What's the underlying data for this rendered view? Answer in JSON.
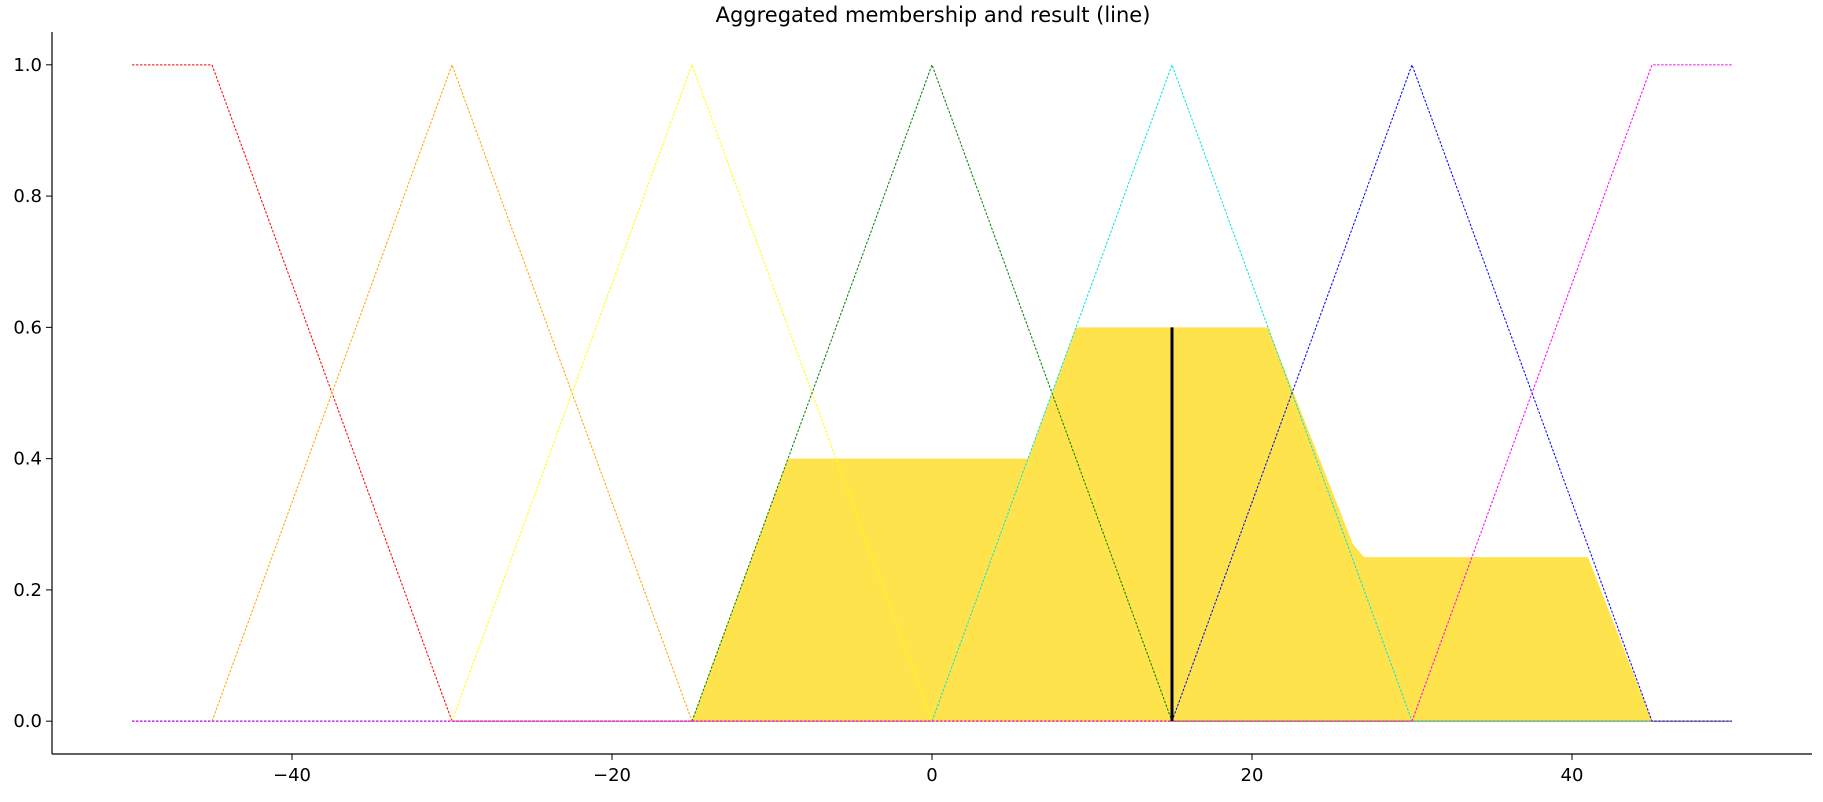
{
  "chart_data": {
    "type": "area",
    "title": "Aggregated membership and result (line)",
    "xlabel": "",
    "ylabel": "",
    "xlim": [
      -55,
      55
    ],
    "ylim": [
      -0.05,
      1.05
    ],
    "x_ticks": [
      -40,
      -20,
      0,
      20,
      40
    ],
    "x_tick_labels": [
      "−40",
      "−20",
      "0",
      "20",
      "40"
    ],
    "y_ticks": [
      0.0,
      0.2,
      0.4,
      0.6,
      0.8,
      1.0
    ],
    "y_tick_labels": [
      "0.0",
      "0.2",
      "0.4",
      "0.6",
      "0.8",
      "1.0"
    ],
    "grid": false,
    "membership_functions": [
      {
        "color": "#ff0000",
        "points": [
          [
            -50,
            1
          ],
          [
            -45,
            1
          ],
          [
            -30,
            0
          ],
          [
            50,
            0
          ]
        ]
      },
      {
        "color": "#ffa500",
        "points": [
          [
            -50,
            0
          ],
          [
            -45,
            0
          ],
          [
            -30,
            1
          ],
          [
            -15,
            0
          ],
          [
            50,
            0
          ]
        ]
      },
      {
        "color": "#ffff00",
        "points": [
          [
            -50,
            0
          ],
          [
            -30,
            0
          ],
          [
            -15,
            1
          ],
          [
            0,
            0
          ],
          [
            50,
            0
          ]
        ]
      },
      {
        "color": "#008000",
        "points": [
          [
            -50,
            0
          ],
          [
            -15,
            0
          ],
          [
            0,
            1
          ],
          [
            15,
            0
          ],
          [
            50,
            0
          ]
        ]
      },
      {
        "color": "#00e5e5",
        "points": [
          [
            -50,
            0
          ],
          [
            0,
            0
          ],
          [
            15,
            1
          ],
          [
            30,
            0
          ],
          [
            50,
            0
          ]
        ]
      },
      {
        "color": "#0000ff",
        "points": [
          [
            -50,
            0
          ],
          [
            15,
            0
          ],
          [
            30,
            1
          ],
          [
            45,
            0
          ],
          [
            50,
            0
          ]
        ]
      },
      {
        "color": "#ff00ff",
        "points": [
          [
            -50,
            0
          ],
          [
            30,
            0
          ],
          [
            45,
            1
          ],
          [
            50,
            1
          ]
        ]
      }
    ],
    "aggregated": {
      "color": "#ffd700",
      "points": [
        [
          -15,
          0
        ],
        [
          -9,
          0.4
        ],
        [
          6,
          0.4
        ],
        [
          9,
          0.6
        ],
        [
          21,
          0.6
        ],
        [
          26.3,
          0.27
        ],
        [
          27,
          0.25
        ],
        [
          41,
          0.25
        ],
        [
          45,
          0
        ]
      ]
    },
    "result_line": {
      "x": 15,
      "y": 0.6,
      "color": "#000000"
    }
  }
}
